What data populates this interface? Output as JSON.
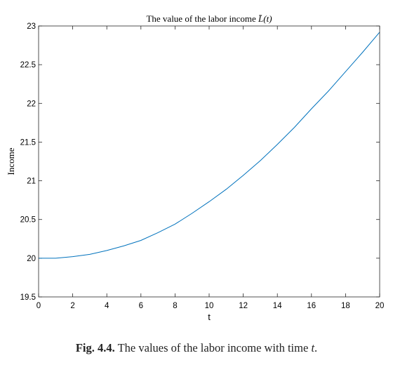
{
  "chart_data": {
    "type": "line",
    "title_pre": "The value of the labor income ",
    "title_math": "L̄(t)",
    "xlabel": "t",
    "ylabel": "Income",
    "xlim": [
      0,
      20
    ],
    "ylim": [
      19.5,
      23
    ],
    "xticks": [
      0,
      2,
      4,
      6,
      8,
      10,
      12,
      14,
      16,
      18,
      20
    ],
    "xtick_labels": [
      "0",
      "2",
      "4",
      "6",
      "8",
      "10",
      "12",
      "14",
      "16",
      "18",
      "20"
    ],
    "yticks": [
      19.5,
      20,
      20.5,
      21,
      21.5,
      22,
      22.5,
      23
    ],
    "ytick_labels": [
      "19.5",
      "20",
      "20.5",
      "21",
      "21.5",
      "22",
      "22.5",
      "23"
    ],
    "grid": false,
    "series": [
      {
        "color": "#0072BD",
        "x": [
          0,
          1,
          2,
          3,
          4,
          5,
          6,
          7,
          8,
          9,
          10,
          11,
          12,
          13,
          14,
          15,
          16,
          17,
          18,
          19,
          20
        ],
        "y": [
          20.0,
          20.0,
          20.02,
          20.05,
          20.1,
          20.16,
          20.23,
          20.33,
          20.44,
          20.58,
          20.73,
          20.89,
          21.07,
          21.26,
          21.47,
          21.69,
          21.93,
          22.16,
          22.41,
          22.66,
          22.92
        ]
      }
    ]
  },
  "caption": {
    "fig_number": "Fig. 4.4.",
    "text": " The values of the labor income with time ",
    "var": "t",
    "end": "."
  }
}
